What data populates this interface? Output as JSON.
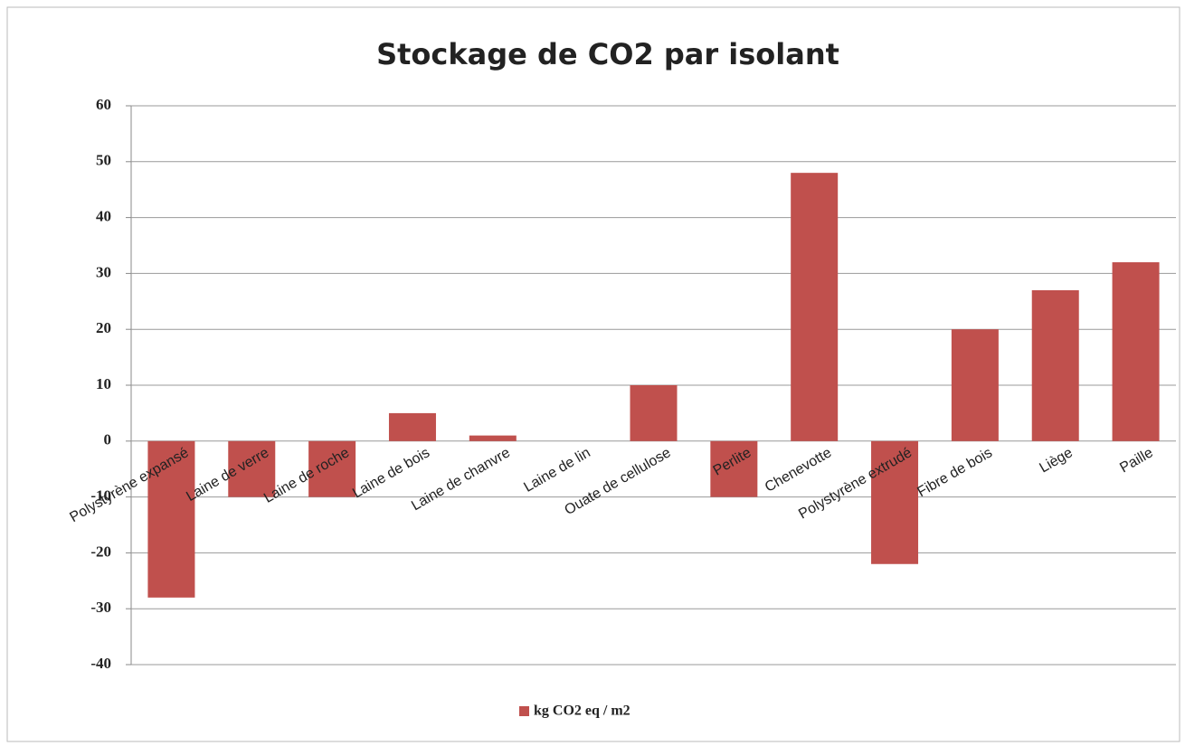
{
  "chart_data": {
    "type": "bar",
    "title": "Stockage de CO2 par isolant",
    "categories": [
      "Polystyrène expansé",
      "Laine de verre",
      "Laine de roche",
      "Laine de bois",
      "Laine de chanvre",
      "Laine de lin",
      "Ouate de cellulose",
      "Perlite",
      "Chenevotte",
      "Polystyrène extrudé",
      "Fibre de bois",
      "Liège",
      "Paille"
    ],
    "series": [
      {
        "name": "kg CO2 eq / m2",
        "color": "#c0504d",
        "values": [
          -28,
          -10,
          -10,
          5,
          1,
          0,
          10,
          -10,
          48,
          -22,
          20,
          27,
          32
        ]
      }
    ],
    "ylim": [
      -40,
      60
    ],
    "yticks": [
      -40,
      -30,
      -20,
      -10,
      0,
      10,
      20,
      30,
      40,
      50,
      60
    ],
    "grid": true,
    "legend": "bottom"
  }
}
